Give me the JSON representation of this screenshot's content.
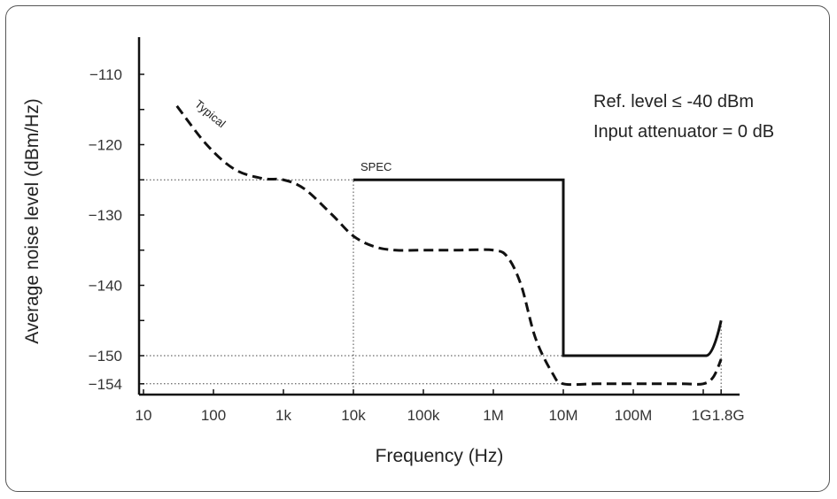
{
  "chart_data": {
    "type": "line",
    "xlabel": "Frequency (Hz)",
    "ylabel": "Average noise level (dBm/Hz)",
    "x_scale": "log",
    "xlim": [
      10,
      2500000000
    ],
    "ylim": [
      -155,
      -104
    ],
    "x_ticks": [
      {
        "value": 10,
        "label": "10"
      },
      {
        "value": 100,
        "label": "100"
      },
      {
        "value": 1000,
        "label": "1k"
      },
      {
        "value": 10000,
        "label": "10k"
      },
      {
        "value": 100000,
        "label": "100k"
      },
      {
        "value": 1000000,
        "label": "1M"
      },
      {
        "value": 10000000,
        "label": "10M"
      },
      {
        "value": 100000000,
        "label": "100M"
      },
      {
        "value": 1000000000,
        "label": "1G"
      },
      {
        "value": 1800000000,
        "label": "1.8G"
      }
    ],
    "y_ticks": [
      {
        "value": -110,
        "label": "−110"
      },
      {
        "value": -120,
        "label": "−120"
      },
      {
        "value": -130,
        "label": "−130"
      },
      {
        "value": -140,
        "label": "−140"
      },
      {
        "value": -150,
        "label": "−150"
      },
      {
        "value": -154,
        "label": "−154"
      }
    ],
    "series": [
      {
        "name": "SPEC",
        "style": "solid",
        "x": [
          10000,
          10000000,
          10000000,
          1000000000,
          1400000000,
          1800000000
        ],
        "y": [
          -125,
          -125,
          -150,
          -150,
          -149,
          -145
        ]
      },
      {
        "name": "Typical",
        "style": "dashed",
        "x": [
          30,
          80,
          200,
          500,
          1000,
          2000,
          5000,
          10000,
          20000,
          40000,
          100000,
          300000,
          1000000,
          1600000,
          2500000,
          4000000,
          7000000,
          10000000,
          30000000,
          100000000,
          500000000,
          1000000000,
          1400000000,
          1800000000
        ],
        "y": [
          -114.5,
          -120,
          -123.5,
          -124.8,
          -125,
          -126.3,
          -130,
          -133,
          -134.5,
          -135,
          -135,
          -135,
          -135,
          -136,
          -140,
          -147.5,
          -152.5,
          -154,
          -154,
          -154,
          -154,
          -154,
          -153,
          -150.5
        ]
      }
    ],
    "reference_lines": [
      {
        "axis": "y",
        "value": -125,
        "x_to": 10000
      },
      {
        "axis": "y",
        "value": -150,
        "x_to": 10000000
      },
      {
        "axis": "y",
        "value": -154,
        "x_to": 10000000
      },
      {
        "axis": "x",
        "value": 10000,
        "y_from": -155,
        "y_to": -125
      },
      {
        "axis": "x",
        "value": 1800000000,
        "y_from": -155,
        "y_to": -145
      }
    ],
    "annotations": [
      "Ref. level ≤ -40 dBm",
      "Input attenuator = 0 dB"
    ],
    "grid": false,
    "legend": "none"
  }
}
